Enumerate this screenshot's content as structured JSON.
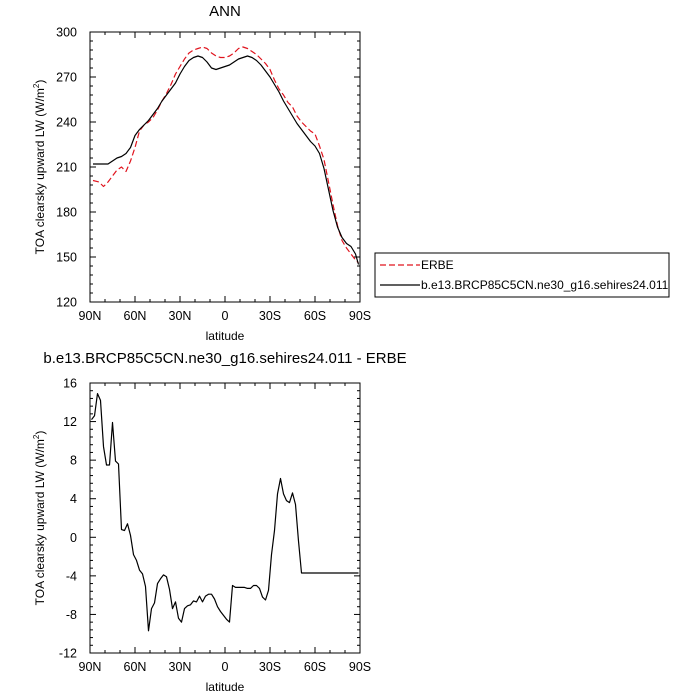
{
  "chart_data": [
    {
      "type": "line",
      "title": "ANN",
      "xlabel": "latitude",
      "ylabel": "TOA clearsky upward LW",
      "ylabel_units": "(W/m",
      "ylabel_sup": "2",
      "ylabel_close": ")",
      "xlim": [
        90,
        -90
      ],
      "ylim": [
        120,
        300
      ],
      "xticks": [
        90,
        60,
        30,
        0,
        -30,
        -60,
        -90
      ],
      "xtick_labels": [
        "90N",
        "60N",
        "30N",
        "0",
        "30S",
        "60S",
        "90S"
      ],
      "yticks": [
        120,
        150,
        180,
        210,
        240,
        270,
        300
      ],
      "ytick_labels": [
        "120",
        "150",
        "180",
        "210",
        "240",
        "270",
        "300"
      ],
      "legend": {
        "placement": "right",
        "entries": [
          "ERBE",
          "b.e13.BRCP85C5CN.ne30_g16.sehires24.011"
        ]
      },
      "series": [
        {
          "name": "ERBE",
          "color": "#e0141e",
          "dash": true,
          "x": [
            88,
            84,
            81,
            78,
            75,
            72,
            69,
            66,
            63,
            60,
            57,
            54,
            51,
            48,
            45,
            42,
            39,
            36,
            33,
            30,
            27,
            24,
            21,
            18,
            15,
            12,
            9,
            6,
            3,
            0,
            -3,
            -6,
            -9,
            -12,
            -15,
            -18,
            -21,
            -24,
            -27,
            -30,
            -33,
            -36,
            -39,
            -42,
            -45,
            -48,
            -51,
            -54,
            -57,
            -60,
            -63,
            -66,
            -69,
            -72,
            -75,
            -78,
            -81,
            -84,
            -87,
            -89
          ],
          "y": [
            201,
            200,
            197,
            200,
            204,
            208,
            210,
            207,
            214,
            223,
            234,
            238,
            240,
            243,
            248,
            254,
            259,
            265,
            272,
            277,
            282,
            286,
            288,
            289,
            290,
            289,
            286,
            284,
            283,
            283,
            284,
            286,
            289,
            290,
            289,
            287,
            285,
            282,
            279,
            275,
            268,
            262,
            258,
            253,
            250,
            244,
            240,
            237,
            234,
            232,
            224,
            215,
            200,
            185,
            171,
            161,
            156,
            152,
            148,
            146
          ]
        },
        {
          "name": "b.e13.BRCP85C5CN.ne30_g16.sehires24.011",
          "color": "#000000",
          "dash": false,
          "x": [
            88,
            84,
            81,
            78,
            75,
            72,
            69,
            66,
            63,
            60,
            57,
            54,
            51,
            48,
            45,
            42,
            39,
            36,
            33,
            30,
            27,
            24,
            21,
            18,
            15,
            12,
            9,
            6,
            3,
            0,
            -3,
            -6,
            -9,
            -12,
            -15,
            -18,
            -21,
            -24,
            -27,
            -30,
            -33,
            -36,
            -39,
            -42,
            -45,
            -48,
            -51,
            -54,
            -57,
            -60,
            -63,
            -66,
            -69,
            -72,
            -75,
            -78,
            -81,
            -84,
            -87,
            -89
          ],
          "y": [
            212,
            212,
            212,
            212,
            214,
            216,
            217,
            219,
            223,
            231,
            235,
            238,
            241,
            245,
            249,
            254,
            258,
            262,
            266,
            272,
            277,
            281,
            283,
            284,
            283,
            280,
            276,
            275,
            276,
            277,
            278,
            280,
            282,
            283,
            284,
            283,
            281,
            278,
            274,
            270,
            265,
            260,
            254,
            249,
            244,
            239,
            235,
            231,
            227,
            224,
            219,
            209,
            195,
            181,
            170,
            163,
            159,
            157,
            152,
            145
          ]
        }
      ]
    },
    {
      "type": "line",
      "title": "b.e13.BRCP85C5CN.ne30_g16.sehires24.011 - ERBE",
      "xlabel": "latitude",
      "ylabel": "TOA clearsky upward LW",
      "ylabel_units": "(W/m",
      "ylabel_sup": "2",
      "ylabel_close": ")",
      "xlim": [
        90,
        -90
      ],
      "ylim": [
        -12,
        16
      ],
      "xticks": [
        90,
        60,
        30,
        0,
        -30,
        -60,
        -90
      ],
      "xtick_labels": [
        "90N",
        "60N",
        "30N",
        "0",
        "30S",
        "60S",
        "90S"
      ],
      "yticks": [
        -12,
        -8,
        -4,
        0,
        4,
        8,
        12,
        16
      ],
      "ytick_labels": [
        "-12",
        "-8",
        "-4",
        "0",
        "4",
        "8",
        "12",
        "16"
      ],
      "series": [
        {
          "color": "#000000",
          "dash": false,
          "x": [
            89,
            87,
            85,
            83,
            81,
            79,
            77,
            75,
            73,
            71,
            69,
            67,
            65,
            63,
            61,
            59,
            57,
            55,
            53,
            51,
            49,
            47,
            45,
            43,
            41,
            39,
            37,
            35,
            33,
            31,
            29,
            27,
            25,
            23,
            21,
            19,
            17,
            15,
            13,
            11,
            9,
            7,
            5,
            3,
            1,
            -1,
            -3,
            -5,
            -7,
            -9,
            -11,
            -13,
            -15,
            -17,
            -19,
            -21,
            -23,
            -25,
            -27,
            -29,
            -31,
            -33,
            -35,
            -37,
            -39,
            -41,
            -43,
            -45,
            -47,
            -49,
            -51,
            -53,
            -55,
            -57,
            -59,
            -61,
            -63,
            -65,
            -67,
            -69,
            -71,
            -73,
            -75,
            -77,
            -79,
            -81,
            -83,
            -85,
            -87,
            -89
          ],
          "y": [
            12.2,
            12.6,
            14.9,
            14.2,
            9.4,
            7.5,
            7.5,
            11.9,
            7.9,
            7.6,
            0.8,
            0.7,
            1.4,
            0.2,
            -1.8,
            -2.4,
            -3.4,
            -3.8,
            -5.1,
            -9.7,
            -7.4,
            -6.8,
            -4.8,
            -4.3,
            -3.9,
            -4.1,
            -5.4,
            -7.4,
            -6.7,
            -8.4,
            -8.8,
            -7.4,
            -7.1,
            -7.0,
            -6.6,
            -6.7,
            -6.1,
            -6.7,
            -6.1,
            -5.9,
            -5.9,
            -6.4,
            -7.2,
            -7.7,
            -8.1,
            -8.5,
            -8.8,
            -5.0,
            -5.2,
            -5.2,
            -5.2,
            -5.2,
            -5.3,
            -5.3,
            -5.0,
            -5.0,
            -5.3,
            -6.2,
            -6.5,
            -5.5,
            -1.8,
            0.7,
            4.5,
            6.1,
            4.5,
            3.8,
            3.6,
            4.6,
            3.4,
            -0.4,
            -3.7,
            -3.7,
            -3.7,
            -3.7,
            -3.7,
            -3.7,
            -3.7,
            -3.7,
            -3.7,
            -3.7,
            -3.7,
            -3.7,
            -3.7,
            -3.7,
            -3.7,
            -3.7,
            -3.7,
            -3.7,
            -3.7,
            -3.7
          ]
        }
      ]
    }
  ]
}
